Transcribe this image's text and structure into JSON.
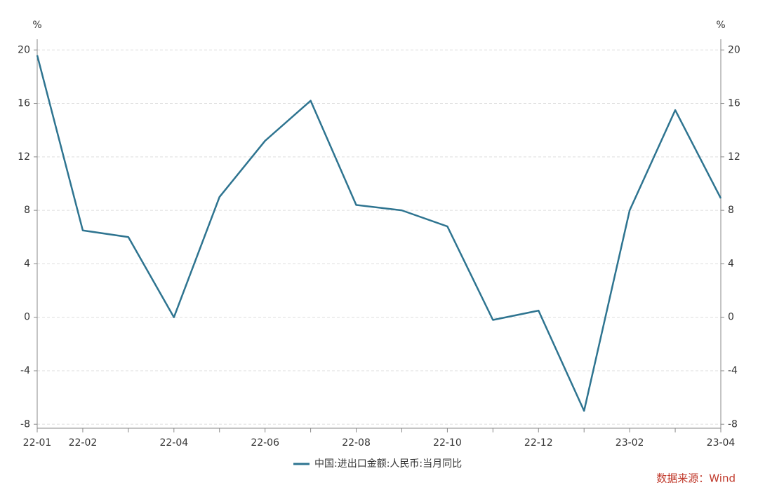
{
  "chart_data": {
    "type": "line",
    "y_label": "%",
    "y2_label": "%",
    "categories": [
      "22-01",
      "22-02",
      null,
      "22-04",
      null,
      "22-06",
      null,
      "22-08",
      null,
      "22-10",
      null,
      "22-12",
      null,
      "23-02",
      null,
      "23-04"
    ],
    "series": [
      {
        "name": "中国:进出口金额:人民币:当月同比",
        "color": "#2e7490",
        "values": [
          19.6,
          6.5,
          6.0,
          0.0,
          9.0,
          13.2,
          16.2,
          8.4,
          8.0,
          6.8,
          -0.2,
          0.5,
          -7.0,
          8.0,
          15.5,
          8.9
        ]
      }
    ],
    "ylim": [
      -8.3,
      20.8
    ],
    "yticks": [
      -8,
      -4,
      0,
      4,
      8,
      12,
      16,
      20
    ],
    "y2lim": [
      -8.3,
      20.8
    ],
    "y2ticks": [
      -8,
      -4,
      0,
      4,
      8,
      12,
      16,
      20
    ],
    "grid": true,
    "legend": "bottom",
    "source": "数据来源：Wind"
  }
}
